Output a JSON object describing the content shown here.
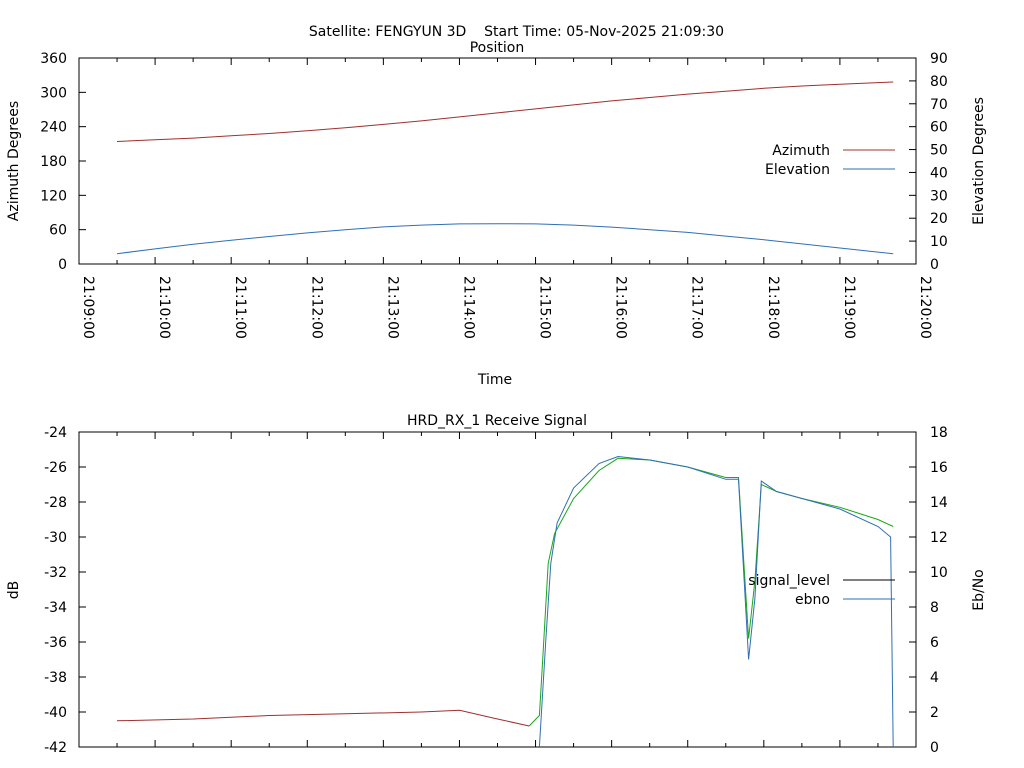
{
  "header": {
    "satellite_label": "Satellite: FENGYUN 3D",
    "start_time_label": "Start Time: 05-Nov-2025 21:09:30"
  },
  "chart_data": [
    {
      "type": "line",
      "title": "Position",
      "xlabel": "Time",
      "ylabel": "Azimuth Degrees",
      "y2label": "Elevation Degrees",
      "x_tick_labels": [
        "21:09:00",
        "21:10:00",
        "21:11:00",
        "21:12:00",
        "21:13:00",
        "21:14:00",
        "21:15:00",
        "21:16:00",
        "21:17:00",
        "21:18:00",
        "21:19:00",
        "21:20:00"
      ],
      "y_ticks": [
        "0",
        "60",
        "120",
        "180",
        "240",
        "300",
        "360"
      ],
      "y2_ticks": [
        "0",
        "10",
        "20",
        "30",
        "40",
        "50",
        "60",
        "70",
        "80",
        "90"
      ],
      "ylim": [
        0,
        360
      ],
      "y2lim": [
        0,
        90
      ],
      "legend_position": "right",
      "series": [
        {
          "name": "Azimuth",
          "axis": "y",
          "color": "#a0302f",
          "x": [
            "21:09:30",
            "21:10:00",
            "21:10:30",
            "21:11:00",
            "21:11:30",
            "21:12:00",
            "21:12:30",
            "21:13:00",
            "21:13:30",
            "21:14:00",
            "21:14:30",
            "21:15:00",
            "21:15:30",
            "21:16:00",
            "21:16:30",
            "21:17:00",
            "21:17:30",
            "21:18:00",
            "21:18:30",
            "21:19:00",
            "21:19:30",
            "21:19:42"
          ],
          "values": [
            214,
            217,
            220,
            224,
            228,
            233,
            238,
            244,
            250,
            257,
            264,
            271,
            278,
            285,
            291,
            297,
            302,
            307,
            311,
            314,
            317,
            318
          ]
        },
        {
          "name": "Elevation",
          "axis": "y2",
          "color": "#2f6fb5",
          "x": [
            "21:09:30",
            "21:10:00",
            "21:10:30",
            "21:11:00",
            "21:11:30",
            "21:12:00",
            "21:12:30",
            "21:13:00",
            "21:13:30",
            "21:14:00",
            "21:14:30",
            "21:15:00",
            "21:15:30",
            "21:16:00",
            "21:16:30",
            "21:17:00",
            "21:17:30",
            "21:18:00",
            "21:18:30",
            "21:19:00",
            "21:19:30",
            "21:19:42"
          ],
          "values": [
            4.5,
            6.6,
            8.6,
            10.4,
            12.0,
            13.6,
            15.0,
            16.2,
            17.0,
            17.5,
            17.6,
            17.5,
            17.0,
            16.1,
            15.0,
            13.8,
            12.2,
            10.6,
            8.8,
            7.0,
            5.2,
            4.5
          ]
        }
      ]
    },
    {
      "type": "line",
      "title": "HRD_RX_1 Receive Signal",
      "xlabel": "",
      "ylabel": "dB",
      "y2label": "Eb/No",
      "y_ticks": [
        "-42",
        "-40",
        "-38",
        "-36",
        "-34",
        "-32",
        "-30",
        "-28",
        "-26",
        "-24"
      ],
      "y2_ticks": [
        "0",
        "2",
        "4",
        "6",
        "8",
        "10",
        "12",
        "14",
        "16",
        "18"
      ],
      "ylim": [
        -42,
        -24
      ],
      "y2lim": [
        0,
        18
      ],
      "legend_position": "right",
      "signal_precarrier_color": "#a0302f",
      "series": [
        {
          "name": "signal_level",
          "axis": "y",
          "color": "#18a818",
          "x": [
            "21:09:30",
            "21:10:30",
            "21:11:30",
            "21:12:30",
            "21:13:30",
            "21:14:00",
            "21:14:30",
            "21:14:55",
            "21:15:03",
            "21:15:06",
            "21:15:10",
            "21:15:15",
            "21:15:30",
            "21:15:50",
            "21:16:05",
            "21:16:30",
            "21:17:00",
            "21:17:30",
            "21:17:40",
            "21:17:48",
            "21:17:53",
            "21:17:58",
            "21:18:10",
            "21:18:30",
            "21:19:00",
            "21:19:30",
            "21:19:42"
          ],
          "values": [
            -40.5,
            -40.4,
            -40.2,
            -40.1,
            -40.0,
            -39.9,
            -40.4,
            -40.8,
            -40.2,
            -36.5,
            -31.5,
            -29.8,
            -27.8,
            -26.2,
            -25.5,
            -25.6,
            -26.0,
            -26.6,
            -26.6,
            -35.8,
            -32.5,
            -27.0,
            -27.4,
            -27.8,
            -28.3,
            -29.0,
            -29.4
          ]
        },
        {
          "name": "ebno",
          "axis": "y2",
          "color": "#2f6fb5",
          "x": [
            "21:15:03",
            "21:15:08",
            "21:15:12",
            "21:15:17",
            "21:15:30",
            "21:15:50",
            "21:16:05",
            "21:16:30",
            "21:17:00",
            "21:17:30",
            "21:17:40",
            "21:17:48",
            "21:17:53",
            "21:17:58",
            "21:18:10",
            "21:18:30",
            "21:19:00",
            "21:19:30",
            "21:19:40",
            "21:19:42"
          ],
          "values": [
            0.0,
            6.0,
            10.5,
            12.8,
            14.8,
            16.2,
            16.6,
            16.4,
            16.0,
            15.3,
            15.3,
            5.0,
            8.5,
            15.2,
            14.6,
            14.2,
            13.6,
            12.6,
            12.0,
            0.0
          ]
        }
      ]
    }
  ]
}
